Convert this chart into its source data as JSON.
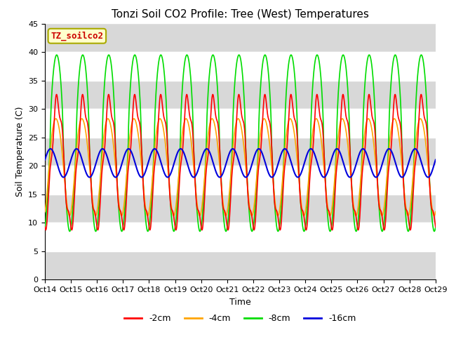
{
  "title": "Tonzi Soil CO2 Profile: Tree (West) Temperatures",
  "xlabel": "Time",
  "ylabel": "Soil Temperature (C)",
  "ylim": [
    0,
    45
  ],
  "n_days": 15,
  "xtick_labels": [
    "Oct 14",
    "Oct 15",
    "Oct 16",
    "Oct 17",
    "Oct 18",
    "Oct 19",
    "Oct 20",
    "Oct 21",
    "Oct 22",
    "Oct 23",
    "Oct 24",
    "Oct 25",
    "Oct 26",
    "Oct 27",
    "Oct 28",
    "Oct 29"
  ],
  "ytick_values": [
    0,
    5,
    10,
    15,
    20,
    25,
    30,
    35,
    40,
    45
  ],
  "line_colors": {
    "2cm": "#ff0000",
    "4cm": "#ffa500",
    "8cm": "#00dd00",
    "16cm": "#0000dd"
  },
  "line_widths": {
    "2cm": 1.2,
    "4cm": 1.2,
    "8cm": 1.2,
    "16cm": 1.5
  },
  "legend_label": "TZ_soilco2",
  "legend_label_color": "#cc0000",
  "legend_box_facecolor": "#ffffcc",
  "legend_box_edgecolor": "#aaaa00",
  "plot_bg_color": "#d8d8d8",
  "fig_bg_color": "#ffffff",
  "title_fontsize": 11,
  "axis_label_fontsize": 9,
  "tick_fontsize": 8,
  "n_points": 1500
}
